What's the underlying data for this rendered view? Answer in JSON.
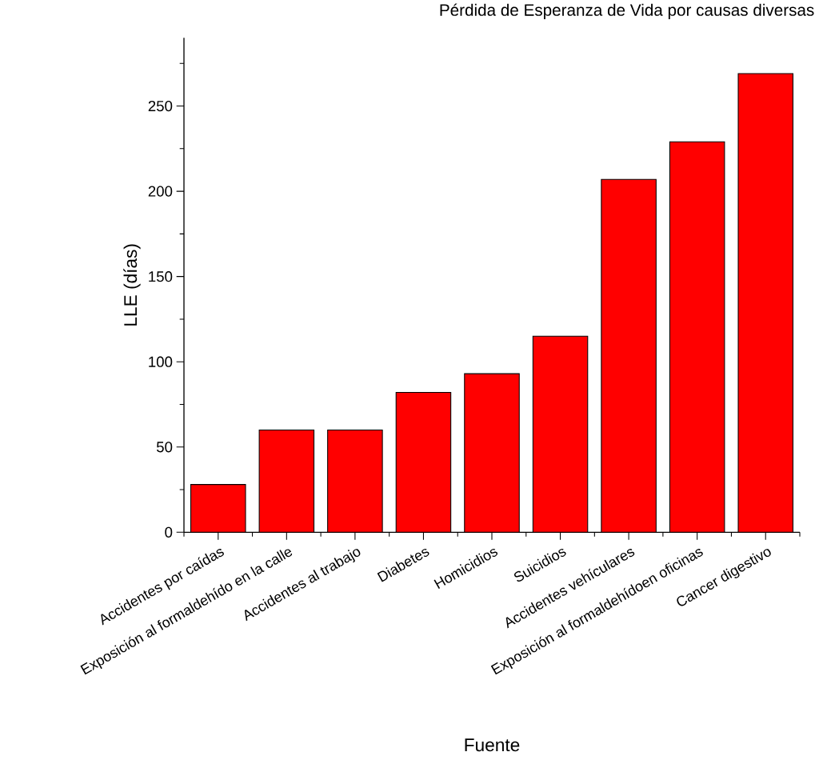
{
  "chart_data": {
    "type": "bar",
    "title": "Pérdida de Esperanza de Vida por causas diversas",
    "xlabel": "Fuente",
    "ylabel": "LLE (días)",
    "categories": [
      "Accidentes por caídas",
      "Exposición al formaldehído en la calle",
      "Accidentes al trabajo",
      "Diabetes",
      "Homicidios",
      "Suicidios",
      "Accidentes vehículares",
      "Exposición al formaldehídoen oficinas",
      "Cancer digestivo"
    ],
    "values": [
      28,
      60,
      60,
      82,
      93,
      115,
      207,
      229,
      269
    ],
    "color": "#ff0000",
    "ylim": [
      0,
      290
    ],
    "yticks": [
      0,
      {
        "value": 25,
        "label": null
      },
      50,
      {
        "value": 75,
        "label": null
      },
      100,
      {
        "value": 125,
        "label": null
      },
      150,
      {
        "value": 175,
        "label": null
      },
      200,
      {
        "value": 225,
        "label": null
      },
      250,
      {
        "value": 275,
        "label": null
      }
    ]
  }
}
